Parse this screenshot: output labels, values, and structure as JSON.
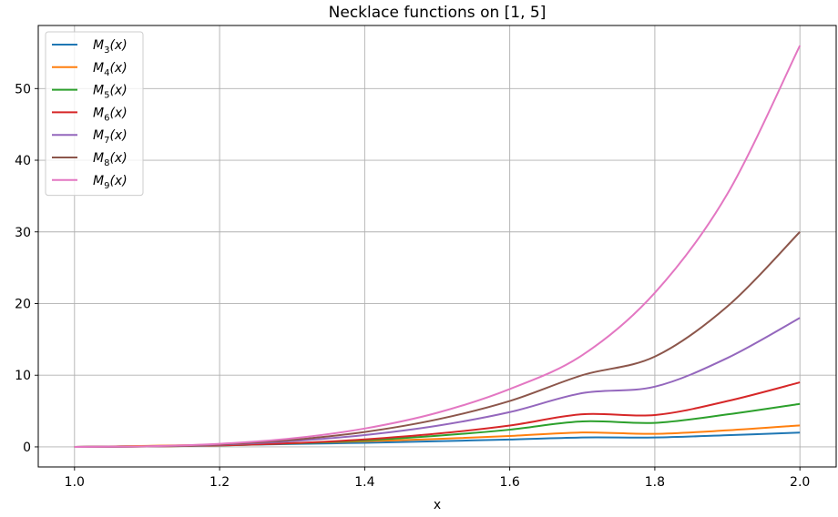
{
  "chart_data": {
    "type": "line",
    "title": "Necklace functions on [1, 5]",
    "xlabel": "x",
    "ylabel": "",
    "xlim": [
      0.95,
      2.05
    ],
    "ylim": [
      -2.8,
      58.8
    ],
    "xticks": [
      1.0,
      1.2,
      1.4,
      1.6,
      1.8,
      2.0
    ],
    "xtick_labels": [
      "1.0",
      "1.2",
      "1.4",
      "1.6",
      "1.8",
      "2.0"
    ],
    "yticks": [
      0,
      10,
      20,
      30,
      40,
      50
    ],
    "ytick_labels": [
      "0",
      "10",
      "20",
      "30",
      "40",
      "50"
    ],
    "grid": true,
    "legend_position": "top-left",
    "x": [
      1.0,
      1.1,
      1.2,
      1.3,
      1.4,
      1.5,
      1.6,
      1.7,
      1.8,
      1.9,
      2.0
    ],
    "series": [
      {
        "name": "M3(x)",
        "sub": "3",
        "color": "#1f77b4",
        "values": [
          0,
          0.11,
          0.24,
          0.4,
          0.57,
          0.79,
          1.03,
          1.31,
          1.31,
          1.63,
          2.0
        ]
      },
      {
        "name": "M4(x)",
        "sub": "4",
        "color": "#ff7f0e",
        "values": [
          0,
          0.14,
          0.31,
          0.52,
          0.79,
          1.11,
          1.52,
          2.01,
          1.82,
          2.31,
          3.0
        ]
      },
      {
        "name": "M5(x)",
        "sub": "5",
        "color": "#2ca02c",
        "values": [
          0,
          0.05,
          0.2,
          0.48,
          0.92,
          1.55,
          2.4,
          3.55,
          3.35,
          4.53,
          6.0
        ]
      },
      {
        "name": "M6(x)",
        "sub": "6",
        "color": "#d62728",
        "values": [
          0,
          0.05,
          0.21,
          0.52,
          1.05,
          1.85,
          2.98,
          4.55,
          4.44,
          6.39,
          9.0
        ]
      },
      {
        "name": "M7(x)",
        "sub": "7",
        "color": "#9467bd",
        "values": [
          0,
          0.06,
          0.3,
          0.8,
          1.65,
          2.95,
          4.85,
          7.5,
          8.4,
          12.4,
          18.0
        ]
      },
      {
        "name": "M8(x)",
        "sub": "8",
        "color": "#8c564b",
        "values": [
          0,
          0.07,
          0.35,
          0.98,
          2.08,
          3.83,
          6.4,
          10.0,
          12.6,
          19.6,
          30.0
        ]
      },
      {
        "name": "M9(x)",
        "sub": "9",
        "color": "#e377c2",
        "values": [
          0,
          0.09,
          0.43,
          1.18,
          2.56,
          4.76,
          8.07,
          12.8,
          21.5,
          35.3,
          56.0
        ]
      }
    ]
  }
}
